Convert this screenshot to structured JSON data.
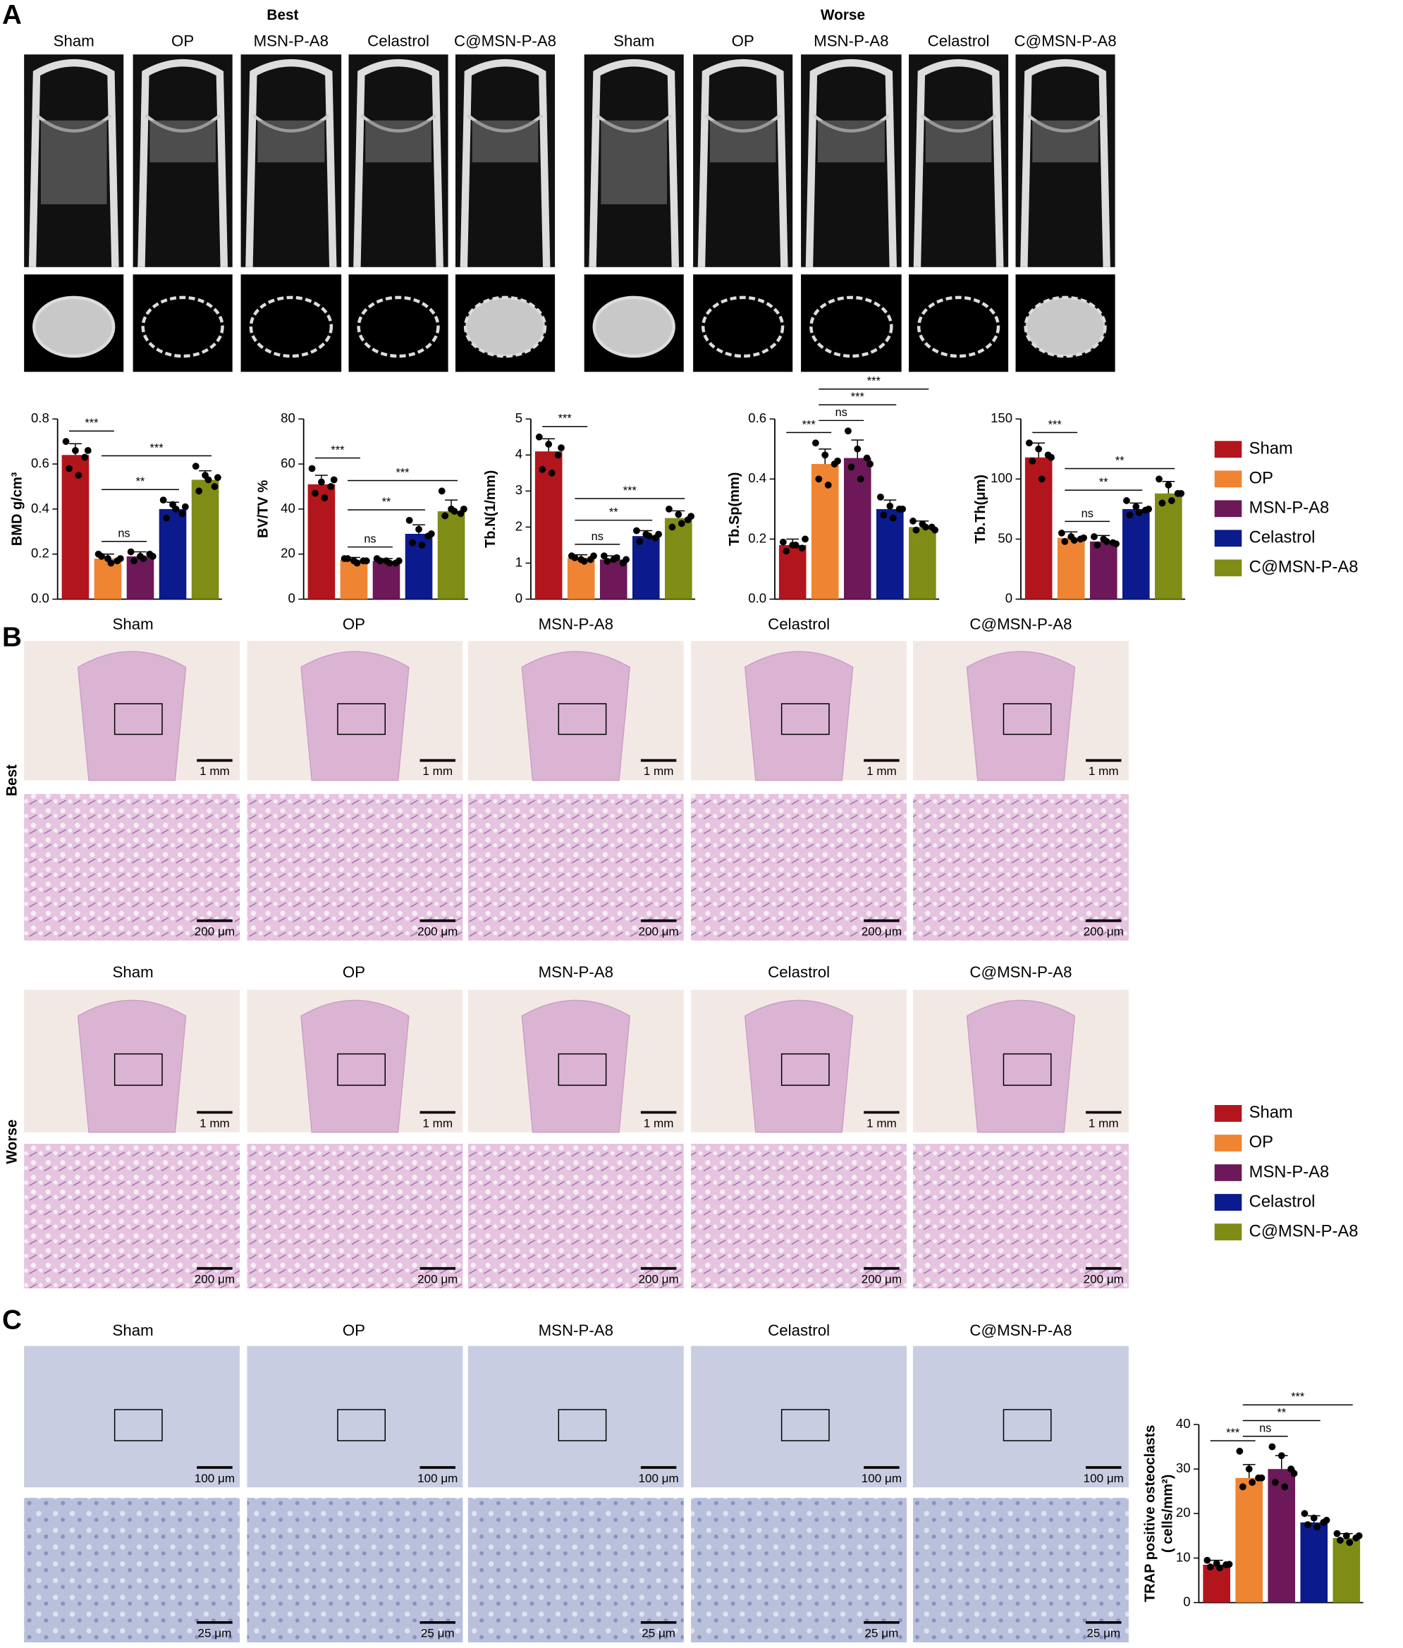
{
  "figure": {
    "panel_labels": [
      "A",
      "B",
      "C"
    ],
    "panel_a": {
      "groups": [
        "Best",
        "Worse"
      ],
      "columns": [
        "Sham",
        "OP",
        "MSN-P-A8",
        "Celastrol",
        "C@MSN-P-A8"
      ]
    },
    "panel_b": {
      "rows": [
        "Best",
        "Worse"
      ],
      "columns": [
        "Sham",
        "OP",
        "MSN-P-A8",
        "Celastrol",
        "C@MSN-P-A8"
      ],
      "scale_bars": [
        "1 mm",
        "200 μm"
      ]
    },
    "panel_c": {
      "columns": [
        "Sham",
        "OP",
        "MSN-P-A8",
        "Celastrol",
        "C@MSN-P-A8"
      ],
      "scale_bars": [
        "100 μm",
        "25 μm"
      ]
    },
    "legend": {
      "names": [
        "Sham",
        "OP",
        "MSN-P-A8",
        "Celastrol",
        "C@MSN-P-A8"
      ],
      "colors": [
        "#b3151c",
        "#ef8432",
        "#6d1858",
        "#0b1a8c",
        "#7f8c16"
      ]
    }
  },
  "chart_data": [
    {
      "type": "bar",
      "ylabel": [
        "BMD g/cm³"
      ],
      "ylim": [
        0,
        0.8
      ],
      "yticks": [
        {
          "value": 0,
          "label": "0.0"
        },
        0.2,
        0.4,
        0.6,
        0.8
      ],
      "values": [
        0.64,
        0.18,
        0.19,
        0.4,
        0.53
      ],
      "errors": [
        0.05,
        0.02,
        0.02,
        0.03,
        0.04
      ],
      "points": [
        [
          0.7,
          0.66,
          0.63,
          0.58,
          0.55,
          0.66
        ],
        [
          0.2,
          0.18,
          0.17,
          0.19,
          0.16,
          0.18
        ],
        [
          0.21,
          0.19,
          0.2,
          0.17,
          0.18,
          0.19
        ],
        [
          0.44,
          0.42,
          0.38,
          0.36,
          0.4,
          0.41
        ],
        [
          0.59,
          0.55,
          0.5,
          0.48,
          0.53,
          0.54
        ]
      ],
      "comparisons": [
        {
          "from": 0,
          "to": 1,
          "label": "***"
        },
        {
          "from": 1,
          "to": 2,
          "label": "ns"
        },
        {
          "from": 1,
          "to": 3,
          "label": "**"
        },
        {
          "from": 1,
          "to": 4,
          "label": "***"
        }
      ]
    },
    {
      "type": "bar",
      "ylabel": [
        "BV/TV %"
      ],
      "ylim": [
        0,
        80
      ],
      "yticks": [
        0,
        20,
        40,
        60,
        80
      ],
      "values": [
        51,
        17.5,
        17,
        29,
        39
      ],
      "errors": [
        4,
        1,
        1,
        4,
        5
      ],
      "points": [
        [
          58,
          52,
          50,
          47,
          45,
          53
        ],
        [
          18,
          17,
          17,
          18,
          16,
          17
        ],
        [
          18,
          17,
          16,
          17,
          16,
          17
        ],
        [
          35,
          31,
          28,
          25,
          24,
          29
        ],
        [
          48,
          40,
          38,
          37,
          39,
          40
        ]
      ],
      "comparisons": [
        {
          "from": 0,
          "to": 1,
          "label": "***"
        },
        {
          "from": 1,
          "to": 2,
          "label": "ns"
        },
        {
          "from": 1,
          "to": 3,
          "label": "**"
        },
        {
          "from": 1,
          "to": 4,
          "label": "***"
        }
      ]
    },
    {
      "type": "bar",
      "ylabel": [
        "Tb.N(1/mm)"
      ],
      "ylim": [
        0,
        5
      ],
      "yticks": [
        0,
        1,
        2,
        3,
        4,
        5
      ],
      "values": [
        4.1,
        1.15,
        1.1,
        1.75,
        2.25
      ],
      "errors": [
        0.35,
        0.08,
        0.1,
        0.15,
        0.2
      ],
      "points": [
        [
          4.5,
          4.3,
          4.0,
          3.6,
          3.5,
          4.2
        ],
        [
          1.2,
          1.1,
          1.1,
          1.15,
          1.05,
          1.2
        ],
        [
          1.2,
          1.1,
          1.0,
          1.05,
          1.15,
          1.1
        ],
        [
          1.9,
          1.8,
          1.7,
          1.6,
          1.75,
          1.8
        ],
        [
          2.5,
          2.35,
          2.2,
          2.0,
          2.1,
          2.3
        ]
      ],
      "comparisons": [
        {
          "from": 0,
          "to": 1,
          "label": "***"
        },
        {
          "from": 1,
          "to": 2,
          "label": "ns"
        },
        {
          "from": 1,
          "to": 3,
          "label": "**"
        },
        {
          "from": 1,
          "to": 4,
          "label": "***"
        }
      ]
    },
    {
      "type": "bar",
      "ylabel": [
        "Tb.Sp(mm)"
      ],
      "ylim": [
        0,
        0.6
      ],
      "yticks": [
        {
          "value": 0,
          "label": "0.0"
        },
        0.2,
        0.4,
        0.6
      ],
      "values": [
        0.18,
        0.45,
        0.47,
        0.3,
        0.24
      ],
      "errors": [
        0.02,
        0.05,
        0.06,
        0.03,
        0.02
      ],
      "points": [
        [
          0.19,
          0.18,
          0.17,
          0.16,
          0.18,
          0.2
        ],
        [
          0.52,
          0.48,
          0.45,
          0.4,
          0.38,
          0.46
        ],
        [
          0.56,
          0.5,
          0.47,
          0.44,
          0.4,
          0.45
        ],
        [
          0.34,
          0.31,
          0.3,
          0.28,
          0.27,
          0.3
        ],
        [
          0.26,
          0.25,
          0.24,
          0.23,
          0.24,
          0.23
        ]
      ],
      "comparisons": [
        {
          "from": 0,
          "to": 1,
          "label": "***"
        },
        {
          "from": 1,
          "to": 2,
          "label": "ns"
        },
        {
          "from": 1,
          "to": 3,
          "label": "***"
        },
        {
          "from": 1,
          "to": 4,
          "label": "***"
        }
      ]
    },
    {
      "type": "bar",
      "ylabel": [
        "Tb.Th(μm)"
      ],
      "ylim": [
        0,
        150
      ],
      "yticks": [
        0,
        50,
        100,
        150
      ],
      "values": [
        118,
        51,
        48,
        75,
        88
      ],
      "errors": [
        12,
        5,
        5,
        5,
        10
      ],
      "points": [
        [
          130,
          125,
          120,
          115,
          100,
          118
        ],
        [
          55,
          52,
          50,
          48,
          49,
          51
        ],
        [
          52,
          50,
          47,
          45,
          48,
          46
        ],
        [
          82,
          77,
          74,
          70,
          72,
          75
        ],
        [
          100,
          95,
          88,
          80,
          82,
          88
        ]
      ],
      "comparisons": [
        {
          "from": 0,
          "to": 1,
          "label": "***"
        },
        {
          "from": 1,
          "to": 2,
          "label": "ns"
        },
        {
          "from": 1,
          "to": 3,
          "label": "**"
        },
        {
          "from": 1,
          "to": 4,
          "label": "**"
        }
      ]
    },
    {
      "type": "bar",
      "ylabel": [
        "TRAP positive osteoclasts",
        "( cells/mm²)"
      ],
      "ylim": [
        0,
        40
      ],
      "yticks": [
        0,
        10,
        20,
        30,
        40
      ],
      "values": [
        8.5,
        28,
        30,
        18,
        14.5
      ],
      "errors": [
        1,
        3,
        3,
        1.5,
        1
      ],
      "points": [
        [
          9.5,
          8.8,
          8.5,
          8,
          7.8,
          8.6
        ],
        [
          34,
          30,
          28,
          26,
          27,
          28
        ],
        [
          35,
          33,
          30,
          27,
          26,
          29
        ],
        [
          20,
          19,
          18,
          17.5,
          17,
          18.5
        ],
        [
          15.5,
          15,
          14.5,
          14,
          13.5,
          15
        ]
      ],
      "comparisons": [
        {
          "from": 0,
          "to": 1,
          "label": "***"
        },
        {
          "from": 1,
          "to": 2,
          "label": "ns"
        },
        {
          "from": 1,
          "to": 3,
          "label": "**"
        },
        {
          "from": 1,
          "to": 4,
          "label": "***"
        }
      ]
    }
  ]
}
